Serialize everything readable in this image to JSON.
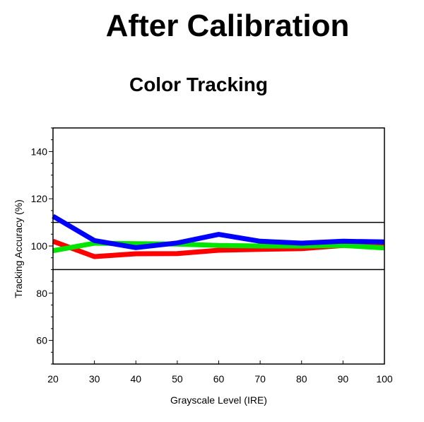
{
  "header": {
    "title": "After Calibration"
  },
  "chart_data": {
    "type": "line",
    "title": "Color Tracking",
    "xlabel": "Grayscale Level (IRE)",
    "ylabel": "Tracking Accuracy (%)",
    "x": [
      20,
      30,
      40,
      50,
      60,
      70,
      80,
      90,
      100
    ],
    "xlim": [
      20,
      100
    ],
    "ylim": [
      50,
      150
    ],
    "x_ticks": [
      20,
      30,
      40,
      50,
      60,
      70,
      80,
      90,
      100
    ],
    "y_ticks": [
      60,
      80,
      100,
      120,
      140
    ],
    "y_minor_step": 5,
    "reference_lines": [
      110,
      90
    ],
    "grid": false,
    "series": [
      {
        "color": "#ff0000",
        "values": [
          102,
          95.5,
          96.7,
          96.8,
          98.2,
          98.6,
          98.9,
          100.2,
          101.0
        ]
      },
      {
        "color": "#00e600",
        "values": [
          98.0,
          101.2,
          101.0,
          100.8,
          100.2,
          100.0,
          100.0,
          100.2,
          99.2
        ]
      },
      {
        "color": "#0000ff",
        "values": [
          112.6,
          102.3,
          99.3,
          101.3,
          104.9,
          102.0,
          101.2,
          102.0,
          101.7
        ]
      }
    ]
  }
}
